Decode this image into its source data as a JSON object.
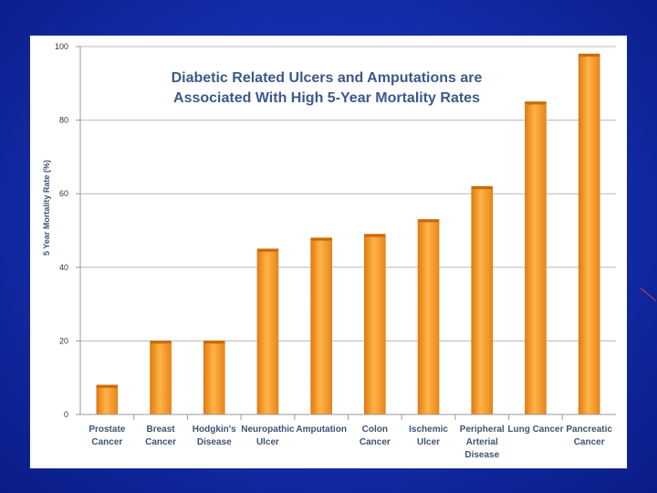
{
  "colors": {
    "background": "#1430b0",
    "panel": "#ffffff",
    "bar_light": "#ffb347",
    "bar_dark": "#e07c10",
    "grid": "#b8b8b8",
    "title": "#3a5a8a",
    "label": "#3d5571"
  },
  "chart_data": {
    "type": "bar",
    "title_lines": [
      "Diabetic Related Ulcers and Amputations are",
      "Associated With High 5-Year Mortality Rates"
    ],
    "ylabel": "5 Year Mortality Rate (%)",
    "xlabel": "",
    "ylim": [
      0,
      100
    ],
    "yticks": [
      "0",
      "20",
      "40",
      "60",
      "80",
      "100"
    ],
    "grid": true,
    "categories": [
      [
        "Prostate",
        "Cancer"
      ],
      [
        "Breast",
        "Cancer"
      ],
      [
        "Hodgkin's",
        "Disease"
      ],
      [
        "Neuropathic",
        "Ulcer"
      ],
      [
        "Amputation"
      ],
      [
        "Colon",
        "Cancer"
      ],
      [
        "Ischemic",
        "Ulcer"
      ],
      [
        "Peripheral",
        "Arterial",
        "Disease"
      ],
      [
        "Lung Cancer"
      ],
      [
        "Pancreatic",
        "Cancer"
      ]
    ],
    "values": [
      8,
      20,
      20,
      45,
      48,
      49,
      53,
      62,
      85,
      98
    ]
  }
}
